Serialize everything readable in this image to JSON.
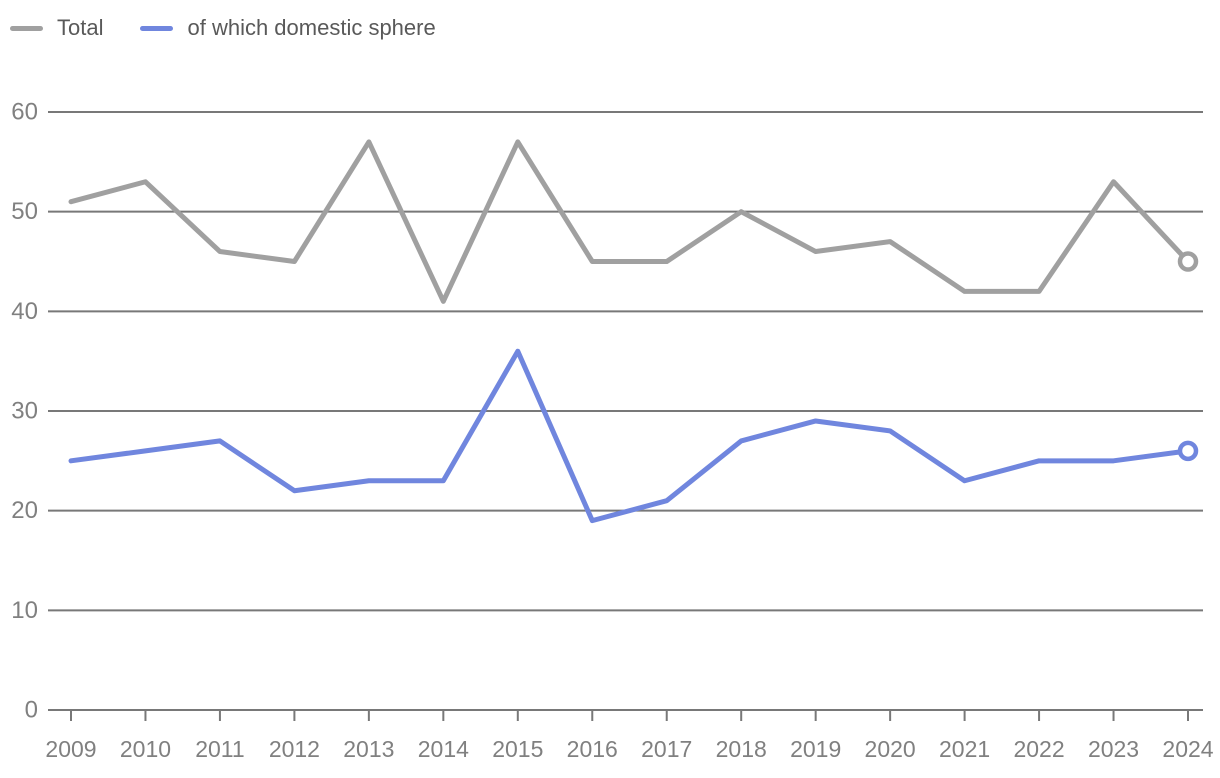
{
  "legend": {
    "items": [
      {
        "label": "Total"
      },
      {
        "label": "of which domestic sphere"
      }
    ]
  },
  "chart_data": {
    "type": "line",
    "title": "",
    "xlabel": "",
    "ylabel": "",
    "x": [
      "2009",
      "2010",
      "2011",
      "2012",
      "2013",
      "2014",
      "2015",
      "2016",
      "2017",
      "2018",
      "2019",
      "2020",
      "2021",
      "2022",
      "2023",
      "2024"
    ],
    "series": [
      {
        "name": "Total",
        "color": "#a0a0a0",
        "values": [
          51,
          53,
          46,
          45,
          57,
          41,
          57,
          45,
          45,
          50,
          46,
          47,
          42,
          42,
          53,
          45
        ]
      },
      {
        "name": "of which domestic sphere",
        "color": "#7086de",
        "values": [
          25,
          26,
          27,
          22,
          23,
          23,
          36,
          19,
          21,
          27,
          29,
          28,
          23,
          25,
          25,
          26
        ]
      }
    ],
    "ylim": [
      0,
      60
    ],
    "yticks": [
      0,
      10,
      20,
      30,
      40,
      50,
      60
    ],
    "grid": true,
    "legend_position": "top-left",
    "end_marker": "open-circle"
  },
  "colors": {
    "grid_line": "#787878",
    "axis_line": "#787878",
    "tick_label": "#808080",
    "legend_text": "#595959",
    "background": "#ffffff"
  }
}
